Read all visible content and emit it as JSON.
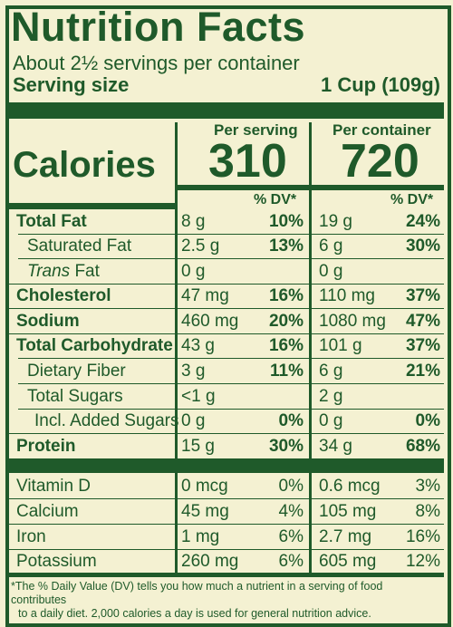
{
  "label": {
    "title": "Nutrition Facts",
    "servings": "About 2½ servings per container",
    "serving_size_label": "Serving size",
    "serving_size_value": "1 Cup (109g)"
  },
  "columns": {
    "per_serving": "Per serving",
    "per_container": "Per container",
    "dv_header": "% DV*"
  },
  "calories": {
    "label": "Calories",
    "per_serving": "310",
    "per_container": "720"
  },
  "nutrients": [
    {
      "name": "Total Fat",
      "amt1": "8 g",
      "dv1": "10%",
      "amt2": "19 g",
      "dv2": "24%"
    },
    {
      "name": "Saturated Fat",
      "amt1": "2.5 g",
      "dv1": "13%",
      "amt2": "6 g",
      "dv2": "30%"
    },
    {
      "name_italic": "Trans",
      "name": " Fat",
      "amt1": "0 g",
      "dv1": "",
      "amt2": "0 g",
      "dv2": ""
    },
    {
      "name": "Cholesterol",
      "amt1": "47 mg",
      "dv1": "16%",
      "amt2": "110 mg",
      "dv2": "37%"
    },
    {
      "name": "Sodium",
      "amt1": "460 mg",
      "dv1": "20%",
      "amt2": "1080 mg",
      "dv2": "47%"
    },
    {
      "name": "Total Carbohydrate",
      "amt1": "43 g",
      "dv1": "16%",
      "amt2": "101 g",
      "dv2": "37%"
    },
    {
      "name": "Dietary Fiber",
      "amt1": "3 g",
      "dv1": "11%",
      "amt2": "6 g",
      "dv2": "21%"
    },
    {
      "name": "Total Sugars",
      "amt1": "<1 g",
      "dv1": "",
      "amt2": "2 g",
      "dv2": ""
    },
    {
      "name": "Incl. Added Sugars",
      "amt1": "0 g",
      "dv1": "0%",
      "amt2": "0 g",
      "dv2": "0%"
    },
    {
      "name": "Protein",
      "amt1": "15 g",
      "dv1": "30%",
      "amt2": "34 g",
      "dv2": "68%"
    }
  ],
  "vitamins": [
    {
      "name": "Vitamin D",
      "amt1": "0 mcg",
      "dv1": "0%",
      "amt2": "0.6 mcg",
      "dv2": "3%"
    },
    {
      "name": "Calcium",
      "amt1": "45 mg",
      "dv1": "4%",
      "amt2": "105 mg",
      "dv2": "8%"
    },
    {
      "name": "Iron",
      "amt1": "1 mg",
      "dv1": "6%",
      "amt2": "2.7 mg",
      "dv2": "16%"
    },
    {
      "name": "Potassium",
      "amt1": "260 mg",
      "dv1": "6%",
      "amt2": "605 mg",
      "dv2": "12%"
    }
  ],
  "footnote": {
    "line1": "*The % Daily Value (DV) tells you how much a nutrient in a serving of food contributes",
    "line2": "to a daily diet. 2,000 calories a day is used for general nutrition advice."
  },
  "colors": {
    "text": "#1f5a2a",
    "background": "#f4f1d2"
  }
}
